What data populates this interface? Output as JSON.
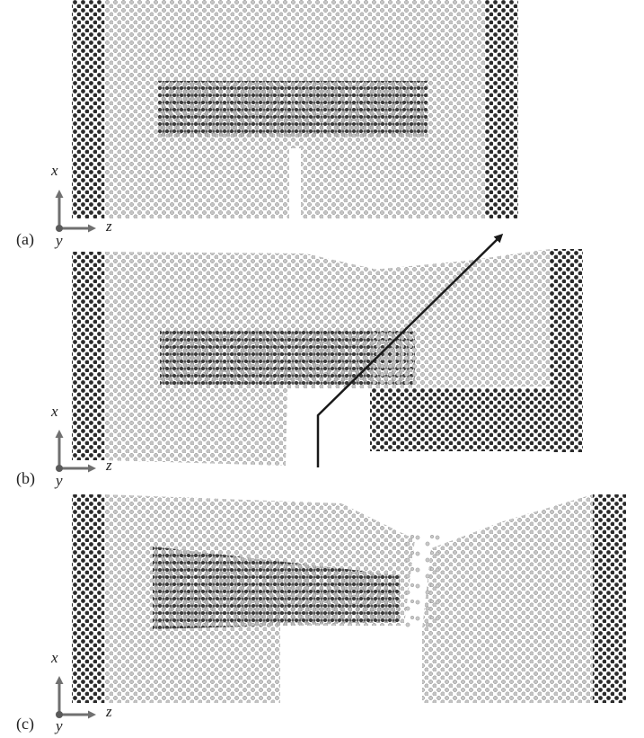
{
  "figure": {
    "panels": [
      {
        "id": "a",
        "label": "(a)",
        "axes": {
          "vertical": "x",
          "horizontal": "z",
          "out_of_plane": "y"
        },
        "state": "intact notched specimen with embedded dark inclusion"
      },
      {
        "id": "b",
        "label": "(b)",
        "axes": {
          "vertical": "x",
          "horizontal": "z",
          "out_of_plane": "y"
        },
        "state": "crack opened and right block displaced; arrow marks crack path"
      },
      {
        "id": "c",
        "label": "(c)",
        "axes": {
          "vertical": "x",
          "horizontal": "z",
          "out_of_plane": "y"
        },
        "state": "specimen separated with scattered atoms in the gap"
      }
    ],
    "colors": {
      "light_atom": "#bdbdbd",
      "light_atom_edge": "#8f8f8f",
      "dark_atom": "#2b2b2b",
      "axis": "#707070",
      "arrow": "#1a1a1a"
    }
  }
}
